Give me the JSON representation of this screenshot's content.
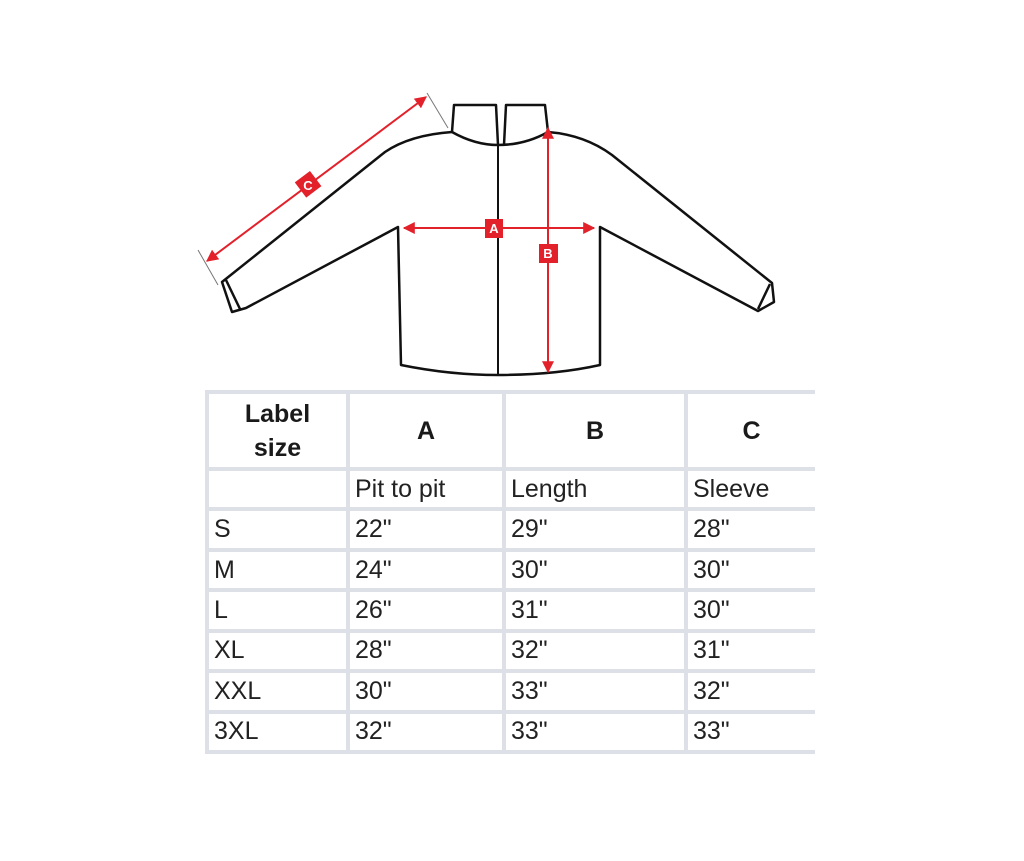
{
  "diagram": {
    "markers": [
      {
        "letter": "A",
        "meaning": "Pit to pit"
      },
      {
        "letter": "B",
        "meaning": "Length"
      },
      {
        "letter": "C",
        "meaning": "Sleeve"
      }
    ],
    "colors": {
      "outline": "#111111",
      "arrow": "#e3212b",
      "table_border": "#dde0e6"
    }
  },
  "table": {
    "header": [
      "Label\nsize",
      "A",
      "B",
      "C"
    ],
    "subheader": [
      "",
      "Pit to pit",
      "Length",
      "Sleeve"
    ],
    "rows": [
      [
        "S",
        "22\"",
        "29\"",
        "28\""
      ],
      [
        "M",
        "24\"",
        "30\"",
        "30\""
      ],
      [
        "L",
        "26\"",
        "31\"",
        "30\""
      ],
      [
        "XL",
        "28\"",
        "32\"",
        "31\""
      ],
      [
        "XXL",
        "30\"",
        "33\"",
        "32\""
      ],
      [
        "3XL",
        "32\"",
        "33\"",
        "33\""
      ]
    ]
  }
}
